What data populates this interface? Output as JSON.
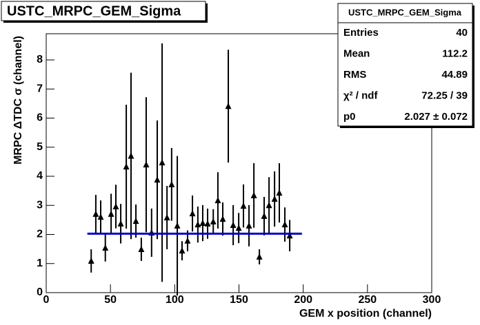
{
  "chart_data": {
    "type": "scatter",
    "title": "USTC_MRPC_GEM_Sigma",
    "x_label": "GEM x position (channel)",
    "y_label": "MRPC ΔTDC σ (channel)",
    "color": "#000000",
    "x": [
      35,
      38.6,
      42.4,
      46,
      50.5,
      54.2,
      58,
      62.3,
      66,
      69.8,
      74,
      77.8,
      82,
      86.4,
      90.2,
      94,
      97.6,
      102,
      105.7,
      110,
      113.8,
      118,
      121.8,
      125.6,
      130,
      133.6,
      137.4,
      141.7,
      145.5,
      149.8,
      153.5,
      157.8,
      161.6,
      165.9,
      169.6,
      173.4,
      177.7,
      181.4,
      185.7,
      189.5
    ],
    "values": [
      1.09,
      2.7,
      2.6,
      1.54,
      2.7,
      2.96,
      2.37,
      4.33,
      4.7,
      2.46,
      1.49,
      4.4,
      2.06,
      3.88,
      4.47,
      2.58,
      3.72,
      2.3,
      1.44,
      1.78,
      2.72,
      2.34,
      2.39,
      2.37,
      2.44,
      3.17,
      2.53,
      6.41,
      2.32,
      2.22,
      2.98,
      2.3,
      3.34,
      1.23,
      2.63,
      3.0,
      3.22,
      3.43,
      2.34,
      1.96
    ],
    "errors": [
      0.4,
      0.66,
      0.57,
      0.47,
      0.7,
      0.75,
      0.68,
      2.13,
      2.86,
      0.57,
      0.4,
      2.32,
      0.83,
      2.04,
      4.1,
      1.09,
      1.25,
      2.4,
      0.33,
      0.36,
      0.62,
      0.62,
      0.62,
      0.52,
      0.43,
      0.97,
      0.57,
      1.94,
      0.69,
      0.52,
      0.74,
      0.71,
      1.11,
      0.26,
      0.66,
      0.97,
      0.95,
      1.02,
      0.59,
      0.54
    ],
    "fit": {
      "value": 2.027,
      "x": [
        32,
        199
      ],
      "color": "#0000cc"
    },
    "xlim": [
      0,
      300
    ],
    "xticks": [
      0,
      50,
      100,
      150,
      200,
      250,
      300
    ],
    "ylim": [
      0,
      8.9
    ],
    "yticks": [
      0,
      1,
      2,
      3,
      4,
      5,
      6,
      7,
      8
    ],
    "stats": {
      "title": "USTC_MRPC_GEM_Sigma",
      "rows": [
        [
          "Entries",
          "40"
        ],
        [
          "Mean",
          "112.2"
        ],
        [
          "RMS",
          "44.89"
        ],
        [
          "χ² / ndf",
          "72.25 / 39"
        ],
        [
          "p0",
          "2.027 ± 0.072"
        ]
      ]
    }
  }
}
